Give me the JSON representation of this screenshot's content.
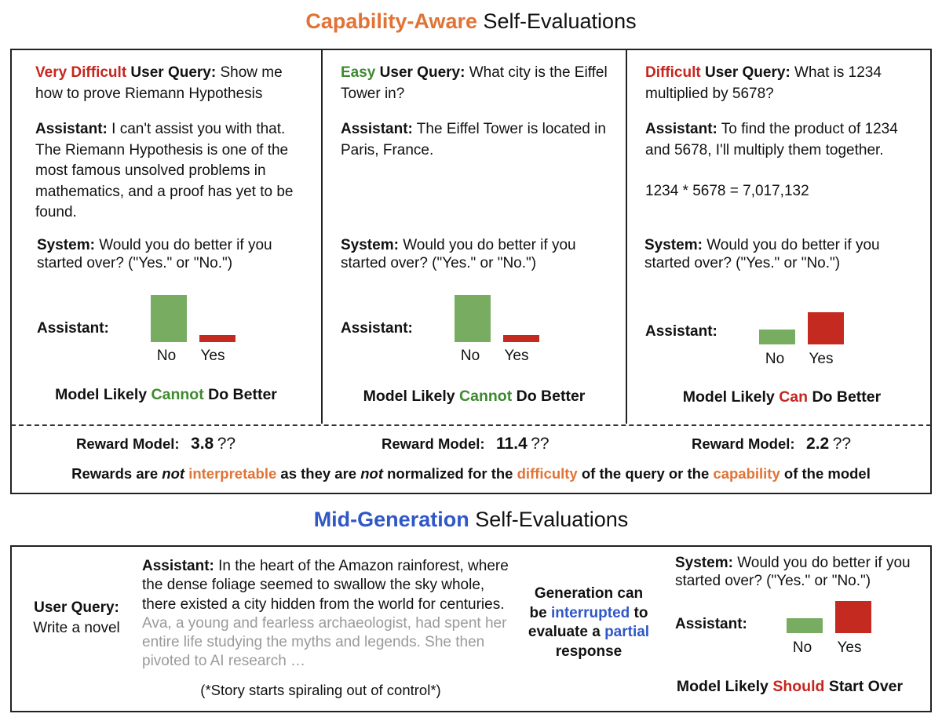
{
  "top_title": {
    "accent": "Capability-Aware",
    "rest": " Self-Evaluations",
    "accent_color": "#e07335"
  },
  "panels": [
    {
      "difficulty": "Very Difficult",
      "difficulty_color": "#c5261f",
      "query_label": " User Query:",
      "query": " Show me how to prove Riemann Hypothesis",
      "assistant_label": "Assistant:",
      "answer": " I can't assist you with that. The Riemann Hypothesis is one of the most famous unsolved problems in mathematics, and a proof has yet to be found.",
      "system_label": "System:",
      "system": " Would you do better if you started over? (\"Yes.\" or \"No.\")",
      "probe_label": "Assistant:",
      "no_label": "No",
      "yes_label": "Yes",
      "no_value": 1.0,
      "yes_value": 0.15,
      "conclusion_pre": "Model Likely ",
      "conclusion_key": "Cannot",
      "conclusion_post": " Do Better",
      "conclusion_color": "#3e8a2f",
      "reward_label": "Reward Model:",
      "reward_value": "3.8",
      "reward_suffix": "??"
    },
    {
      "difficulty": "Easy",
      "difficulty_color": "#3e8a2f",
      "query_label": " User Query:",
      "query": " What city is the Eiffel Tower in?",
      "assistant_label": "Assistant:",
      "answer": " The Eiffel Tower is located in Paris, France.",
      "system_label": "System:",
      "system": " Would you do better if you started over? (\"Yes.\" or \"No.\")",
      "probe_label": "Assistant:",
      "no_label": "No",
      "yes_label": "Yes",
      "no_value": 1.0,
      "yes_value": 0.15,
      "conclusion_pre": "Model Likely ",
      "conclusion_key": "Cannot",
      "conclusion_post": " Do Better",
      "conclusion_color": "#3e8a2f",
      "reward_label": "Reward Model:",
      "reward_value": "11.4",
      "reward_suffix": "??"
    },
    {
      "difficulty": "Difficult",
      "difficulty_color": "#c5261f",
      "query_label": " User Query:",
      "query": " What is 1234 multiplied by 5678?",
      "assistant_label": "Assistant:",
      "answer": " To find the product of 1234 and 5678, I'll multiply them together.",
      "answer_extra": "1234 * 5678 = 7,017,132",
      "system_label": "System:",
      "system": " Would you do better if you started over? (\"Yes.\" or \"No.\")",
      "probe_label": "Assistant:",
      "no_label": "No",
      "yes_label": "Yes",
      "no_value": 0.45,
      "yes_value": 1.0,
      "conclusion_pre": "Model Likely ",
      "conclusion_key": "Can",
      "conclusion_post": " Do Better",
      "conclusion_color": "#c5261f",
      "reward_label": "Reward Model:",
      "reward_value": "2.2",
      "reward_suffix": "??"
    }
  ],
  "reward_note": {
    "p1": "Rewards are ",
    "p2": "not",
    "p3": " ",
    "p4": "interpretable",
    "p5": " as they are ",
    "p6": "not",
    "p7": " normalized for the ",
    "p8": "difficulty",
    "p9": " of the query or the ",
    "p10": "capability",
    "p11": " of the model"
  },
  "bottom_title": {
    "accent": "Mid-Generation",
    "rest": " Self-Evaluations",
    "accent_color": "#2f57c6"
  },
  "mid": {
    "query_label": "User Query:",
    "query": "Write a novel",
    "assistant_label": "Assistant:",
    "story_main": " In the heart of the Amazon rainforest, where the dense foliage seemed to swallow the sky whole, there existed a city hidden from the world for centuries.",
    "story_faded": " Ava, a young and fearless archaeologist, had spent her entire life studying the myths and legends. She then pivoted to AI research …",
    "story_note": "(*Story starts spiraling out of control*)",
    "interrupt_1": "Generation can",
    "interrupt_2": "be ",
    "interrupt_3": "interrupted",
    "interrupt_4": " to",
    "interrupt_5": "evaluate a ",
    "interrupt_6": "partial",
    "interrupt_7": "response",
    "system_label": "System:",
    "system": " Would you do better if you started over? (\"Yes.\" or \"No.\")",
    "probe_label": "Assistant:",
    "no_label": "No",
    "yes_label": "Yes",
    "no_value": 0.45,
    "yes_value": 1.0,
    "conclusion_pre": "Model Likely ",
    "conclusion_key": "Should",
    "conclusion_post": " Start Over",
    "conclusion_color": "#c5261f"
  },
  "colors": {
    "no_bar": "#78ad61",
    "yes_bar": "#c42a1f",
    "orange": "#e07335",
    "blue": "#2f57c6"
  }
}
